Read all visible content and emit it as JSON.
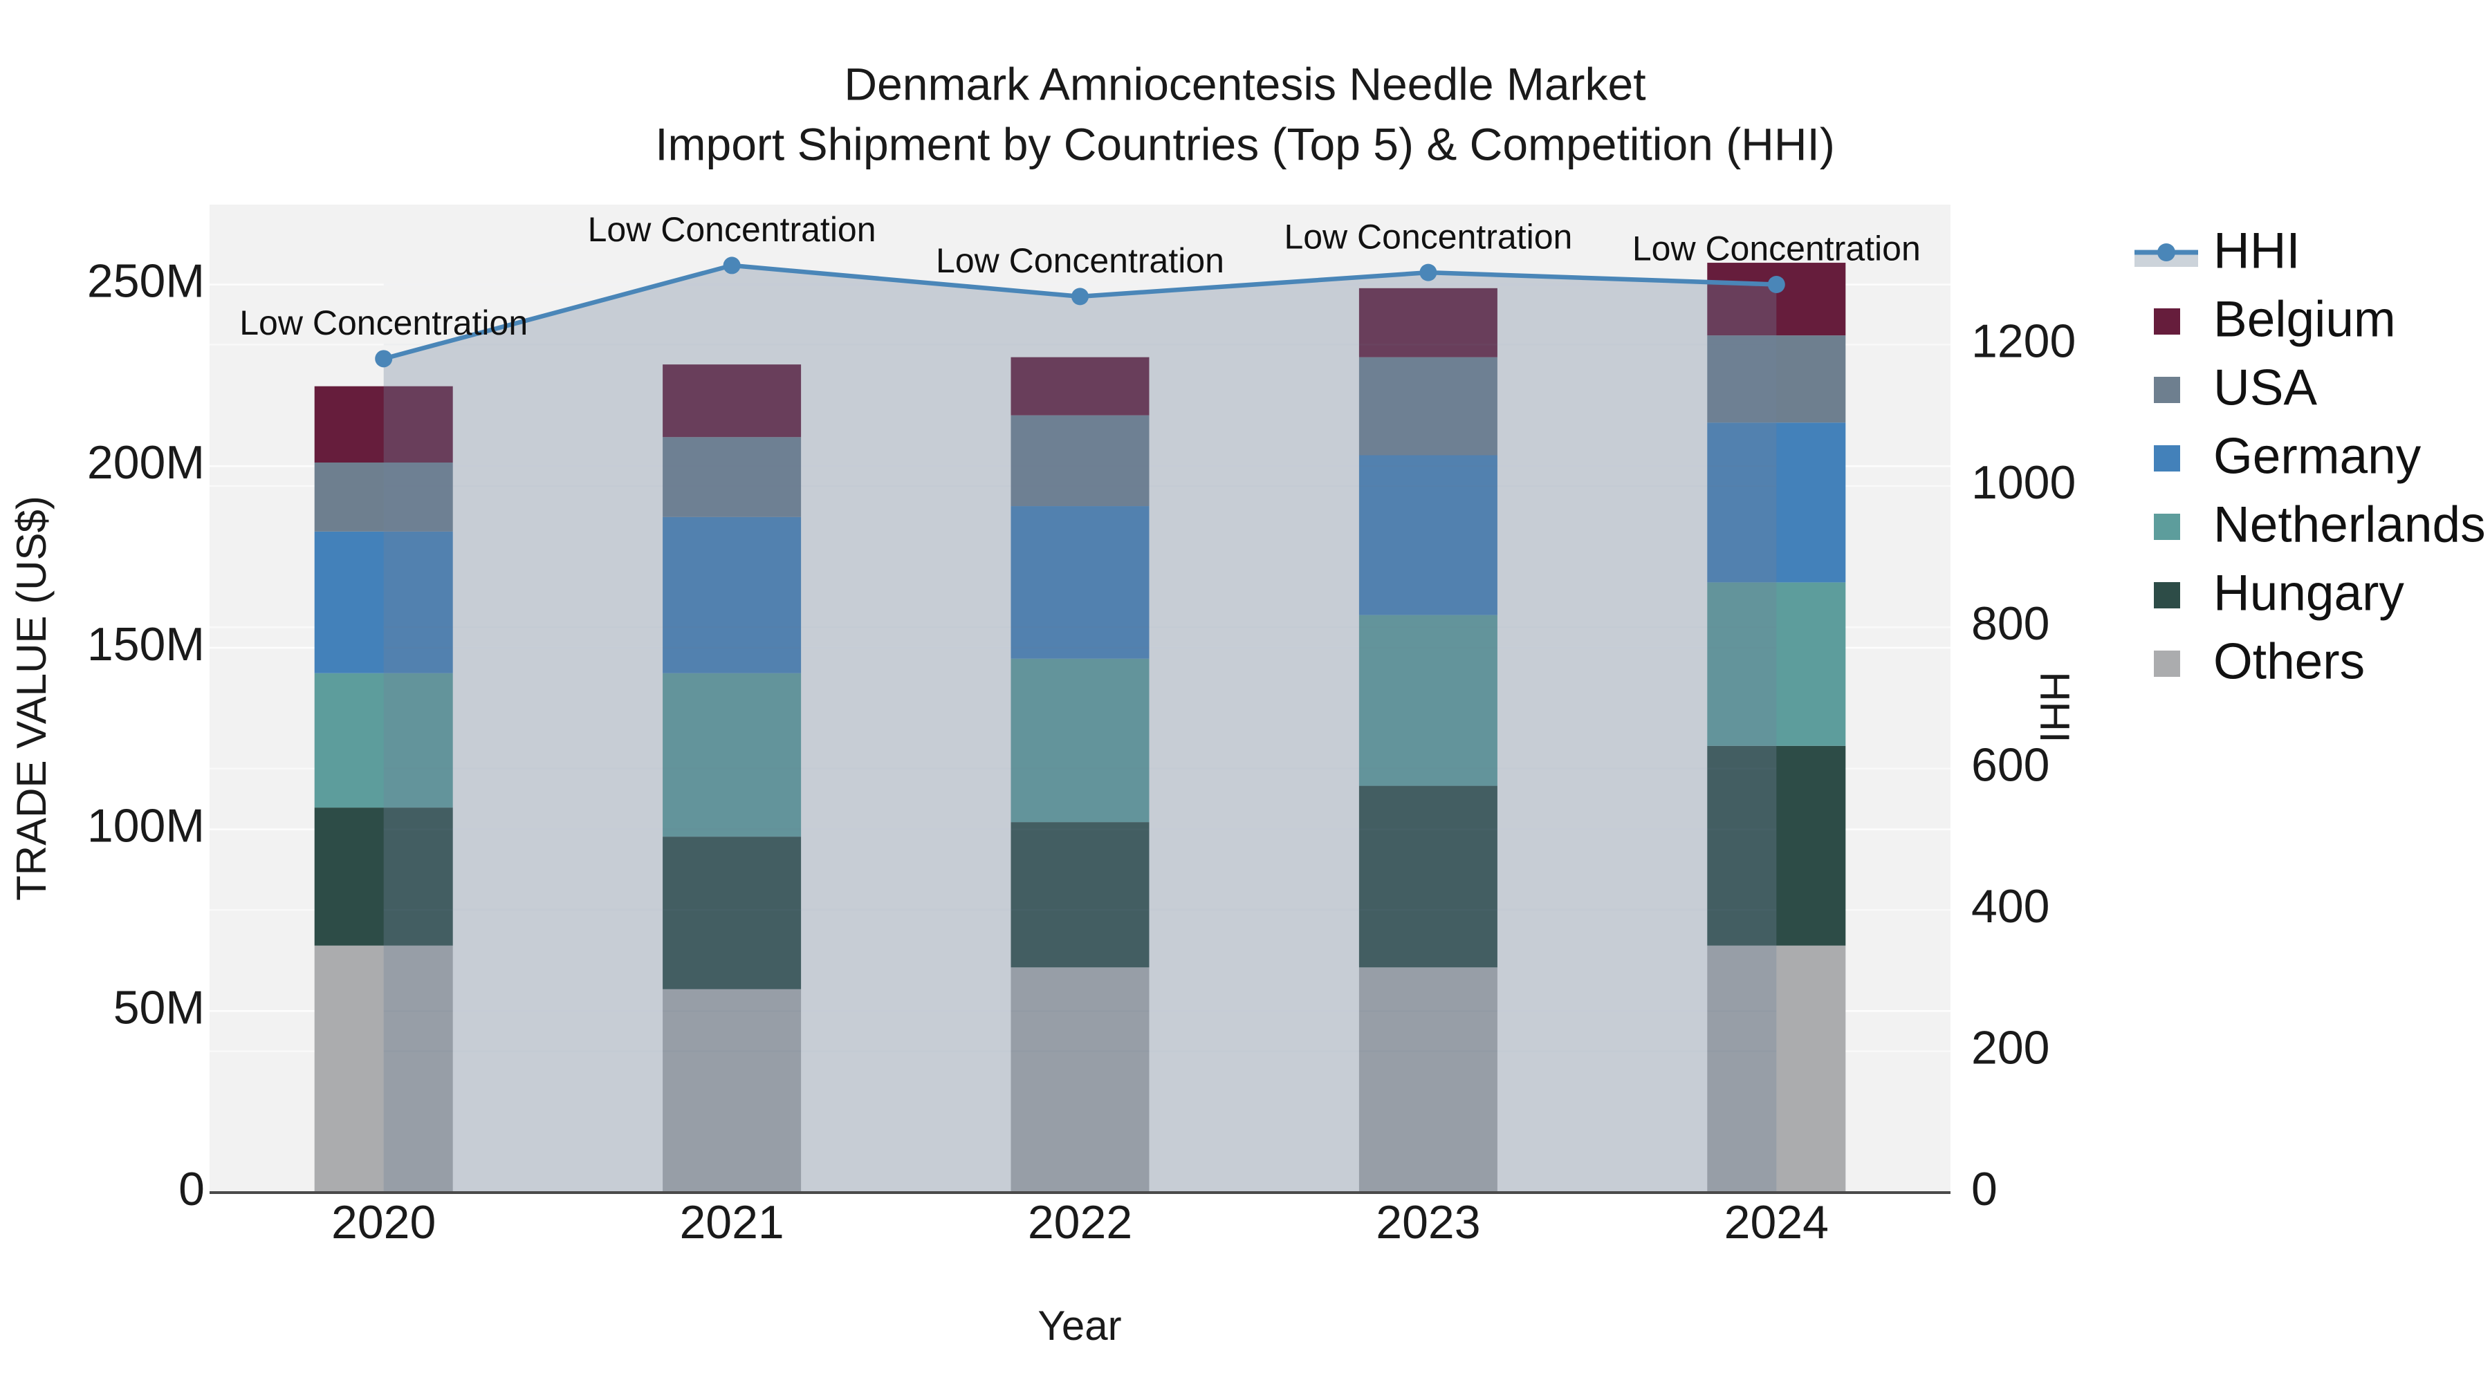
{
  "title": {
    "line1": "Denmark Amniocentesis Needle Market",
    "line2": "Import Shipment by Countries (Top 5) & Competition (HHI)"
  },
  "chart_data": {
    "type": "bar+line",
    "x": [
      "2020",
      "2021",
      "2022",
      "2023",
      "2024"
    ],
    "xlabel": "Year",
    "bar_value_unit": "M US$",
    "series": [
      {
        "name": "Others",
        "color": "#abacae",
        "values": [
          68,
          56,
          62,
          62,
          68
        ]
      },
      {
        "name": "Hungary",
        "color": "#2d4c47",
        "values": [
          38,
          42,
          40,
          50,
          55
        ]
      },
      {
        "name": "Netherlands",
        "color": "#5d9d9c",
        "values": [
          37,
          45,
          45,
          47,
          45
        ]
      },
      {
        "name": "Germany",
        "color": "#4381ba",
        "values": [
          39,
          43,
          42,
          44,
          44
        ]
      },
      {
        "name": "USA",
        "color": "#6e7f8f",
        "values": [
          19,
          22,
          25,
          27,
          24
        ]
      },
      {
        "name": "Belgium",
        "color": "#661d3c",
        "values": [
          21,
          20,
          16,
          19,
          20
        ]
      }
    ],
    "line": {
      "name": "HHI",
      "axis": "right",
      "color": "#4a86b8",
      "fill_color": "rgba(112,130,155,0.33)",
      "legend_band_color": "#ccd3da",
      "values": [
        1180,
        1312,
        1268,
        1302,
        1285
      ]
    },
    "annotations": [
      "Low Concentration",
      "Low Concentration",
      "Low Concentration",
      "Low Concentration",
      "Low Concentration"
    ],
    "y_left": {
      "label": "TRADE VALUE (US$)",
      "ticks": [
        "0",
        "50M",
        "100M",
        "150M",
        "200M",
        "250M"
      ],
      "tick_values": [
        0,
        50,
        100,
        150,
        200,
        250
      ],
      "range": [
        0,
        272
      ]
    },
    "y_right": {
      "label": "HHI",
      "ticks": [
        "0",
        "200",
        "400",
        "600",
        "800",
        "1000",
        "1200"
      ],
      "tick_values": [
        0,
        200,
        400,
        600,
        800,
        1000,
        1200
      ],
      "range": [
        0,
        1398
      ]
    },
    "legend_order": [
      "HHI",
      "Belgium",
      "USA",
      "Germany",
      "Netherlands",
      "Hungary",
      "Others"
    ],
    "legend_position": "right",
    "grid": true,
    "plot_background": "#f2f2f2",
    "gridline_color": "#ffffff",
    "axisline_color": "#4a4a4a",
    "text_color": "#1a1a1a"
  }
}
